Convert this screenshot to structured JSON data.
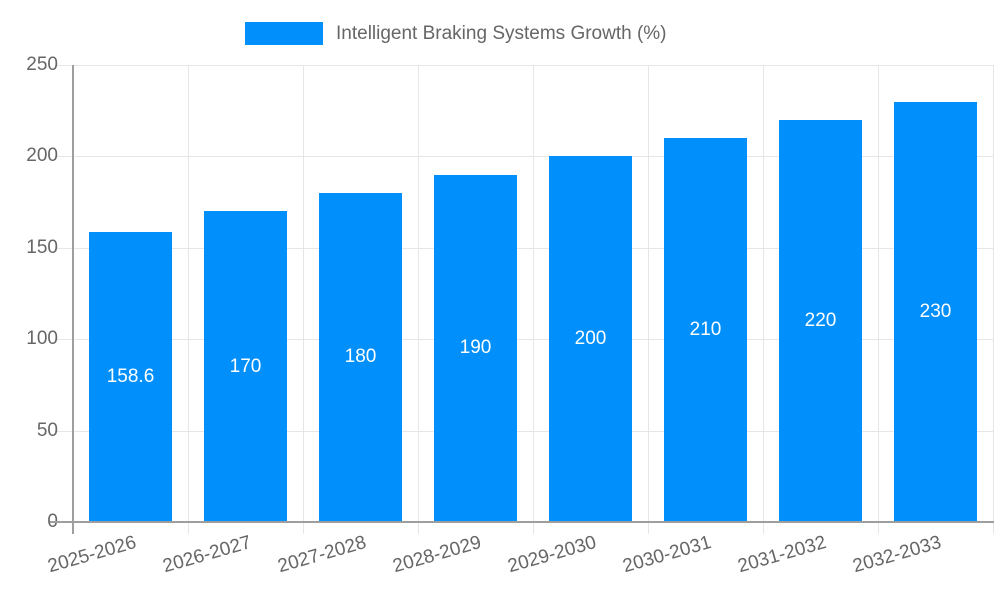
{
  "legend": {
    "label": "Intelligent Braking Systems Growth (%)"
  },
  "chart_data": {
    "type": "bar",
    "title": "Intelligent Braking Systems Growth (%)",
    "series_name": "Intelligent Braking Systems Growth (%)",
    "categories": [
      "2025-2026",
      "2026-2027",
      "2027-2028",
      "2028-2029",
      "2029-2030",
      "2030-2031",
      "2031-2032",
      "2032-2033"
    ],
    "values": [
      158.6,
      170,
      180,
      190,
      200,
      210,
      220,
      230
    ],
    "value_labels": [
      "158.6",
      "170",
      "180",
      "190",
      "200",
      "210",
      "220",
      "230"
    ],
    "xlabel": "",
    "ylabel": "",
    "ylim": [
      0,
      250
    ],
    "yticks": [
      0,
      50,
      100,
      150,
      200,
      250
    ],
    "grid": true,
    "legend_position": "top-center",
    "x_label_rotation_deg": -16
  },
  "colors": {
    "bar": "#008FFB",
    "gridline": "#e6e6e6",
    "axis": "#9e9e9e",
    "label_text": "#666666",
    "value_text": "#ffffff",
    "background": "#ffffff"
  }
}
